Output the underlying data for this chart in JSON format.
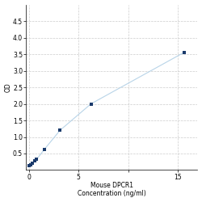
{
  "x_values": [
    0.0,
    0.15,
    0.3,
    0.6,
    0.78,
    1.56,
    3.125,
    6.25,
    15.625
  ],
  "y_values": [
    0.13,
    0.17,
    0.21,
    0.27,
    0.33,
    0.63,
    1.2,
    2.0,
    3.55
  ],
  "line_color": "#b8d4e8",
  "marker_color": "#1a3a6b",
  "marker_size": 3.5,
  "xlabel_line1": "Mouse DPCR1",
  "xlabel_line2": "Concentration (ng/ml)",
  "ylabel": "OD",
  "xlim": [
    -0.3,
    17
  ],
  "ylim": [
    0,
    5.0
  ],
  "yticks": [
    0.5,
    1.0,
    1.5,
    2.0,
    2.5,
    3.0,
    3.5,
    4.0,
    4.5
  ],
  "xticks": [
    0,
    5,
    10,
    15
  ],
  "x_tick_labels": [
    "0",
    "5",
    "",
    "15"
  ],
  "grid_color": "#cccccc",
  "background_color": "#ffffff",
  "tick_label_fontsize": 5.5,
  "axis_label_fontsize": 5.5
}
